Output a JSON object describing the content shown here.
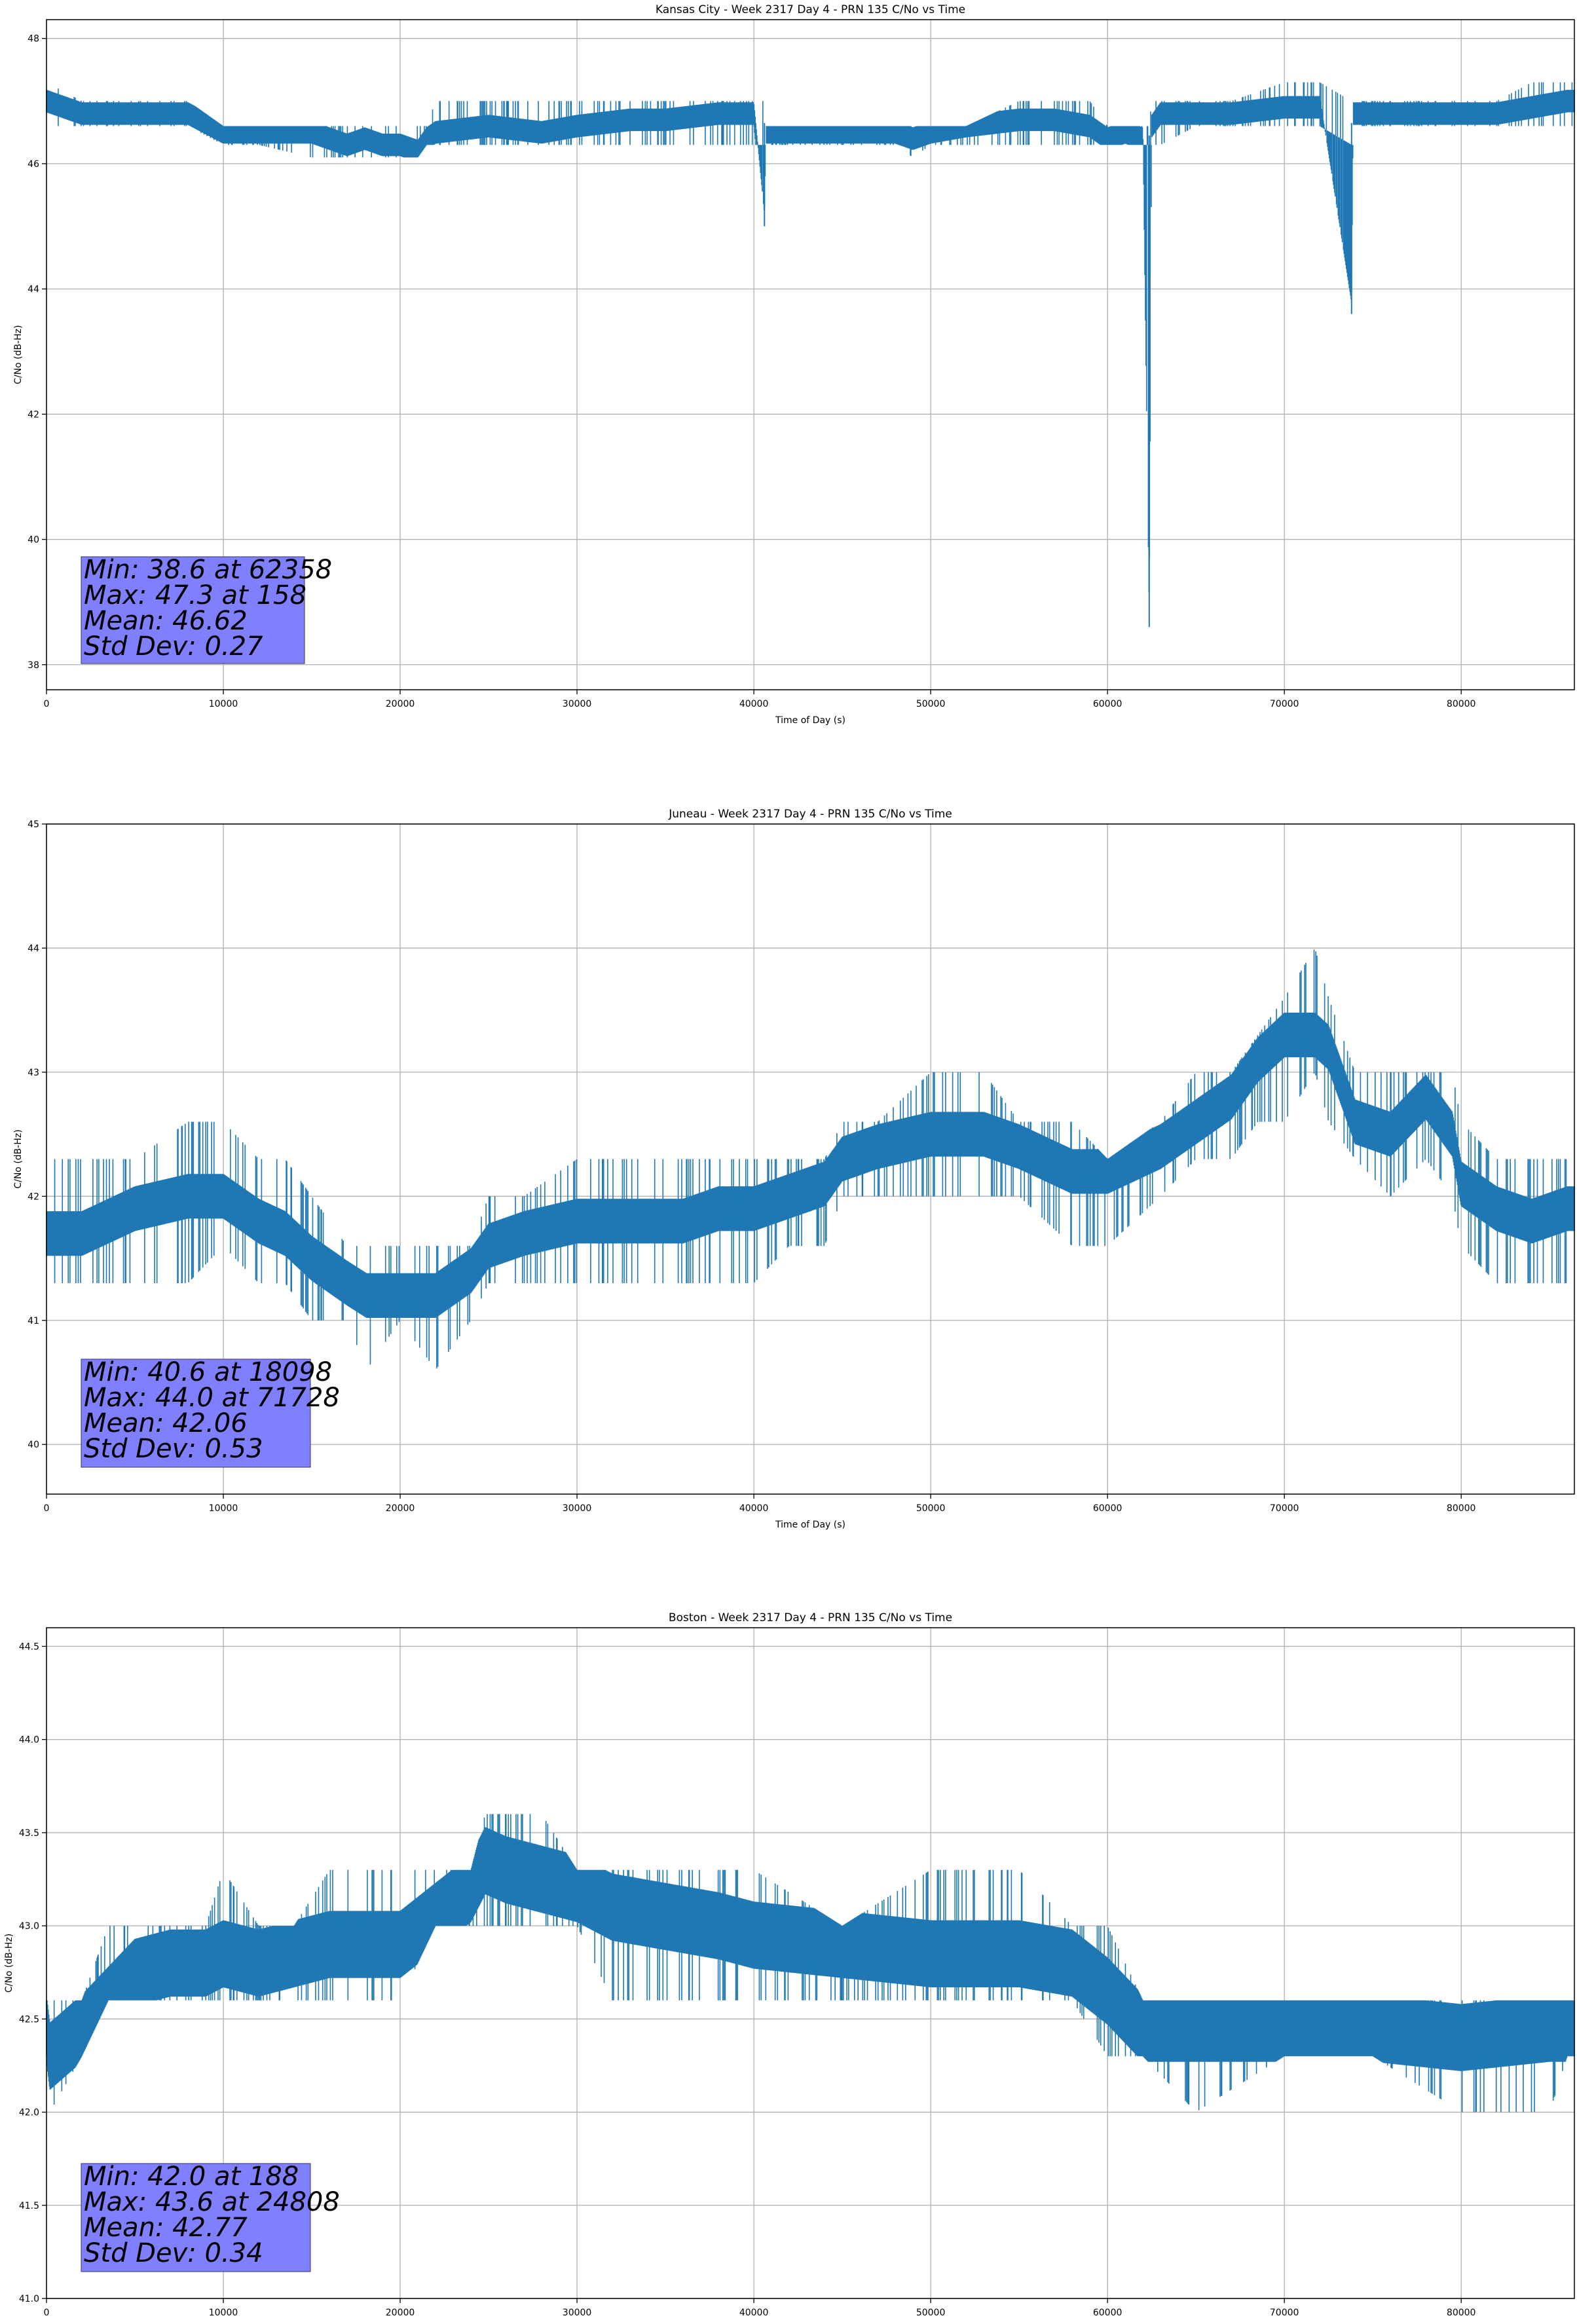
{
  "figure": {
    "xlabel": "Time of Day (s)",
    "ylabel": "C/No (dB-Hz)"
  },
  "colors": {
    "line": "#1f77b4",
    "grid": "#b0b0b0",
    "stats_box": "#8080ff"
  },
  "chart_data": [
    {
      "type": "line",
      "title": "Kansas City - Week 2317 Day 4 - PRN 135 C/No vs Time",
      "xlabel": "Time of Day (s)",
      "ylabel": "C/No (dB-Hz)",
      "xlim": [
        0,
        86400
      ],
      "ylim": [
        37.6,
        48.3
      ],
      "xticks": [
        0,
        10000,
        20000,
        30000,
        40000,
        50000,
        60000,
        70000,
        80000
      ],
      "xtick_labels": [
        "0",
        "10000",
        "20000",
        "30000",
        "40000",
        "50000",
        "60000",
        "70000",
        "80000"
      ],
      "yticks": [
        38,
        40,
        42,
        44,
        46,
        48
      ],
      "ytick_labels": [
        "38",
        "40",
        "42",
        "44",
        "46",
        "48"
      ],
      "grid": true,
      "series": [
        {
          "x": [
            0,
            2000,
            5000,
            8000,
            10000,
            12000,
            15000,
            17000,
            18000,
            19000,
            20000,
            21000,
            21500,
            22000,
            25000,
            28000,
            30000,
            33000,
            35000,
            38000,
            39000,
            40000,
            40600,
            40700,
            42000,
            45000,
            48000,
            49000,
            50000,
            52000,
            55000,
            57000,
            59000,
            60000,
            61000,
            62000,
            62358,
            62500,
            63000,
            65000,
            67000,
            70000,
            72000,
            73800,
            73900,
            74000,
            76000,
            78000,
            80000,
            82000,
            84000,
            86000
          ],
          "y": [
            47.0,
            46.8,
            46.8,
            46.8,
            46.5,
            46.5,
            46.5,
            46.3,
            46.4,
            46.3,
            46.3,
            46.2,
            46.4,
            46.5,
            46.6,
            46.5,
            46.6,
            46.7,
            46.7,
            46.8,
            46.8,
            46.8,
            45.0,
            46.5,
            46.5,
            46.5,
            46.5,
            46.4,
            46.5,
            46.6,
            46.7,
            46.7,
            46.6,
            46.4,
            46.5,
            46.4,
            38.6,
            46.6,
            46.8,
            46.8,
            46.8,
            46.9,
            46.9,
            43.6,
            46.8,
            46.8,
            46.8,
            46.8,
            46.8,
            46.8,
            46.9,
            47.0
          ],
          "band_low": [
            46.6,
            46.6,
            46.6,
            46.6,
            46.3,
            46.3,
            46.1,
            46.1,
            46.1,
            46.1,
            46.1,
            46.1,
            46.3,
            46.3,
            46.3,
            46.3,
            46.3,
            46.3,
            46.3,
            46.3,
            46.3,
            46.3,
            46.3,
            46.3,
            46.3,
            46.3,
            46.3,
            46.1,
            46.3,
            46.3,
            46.3,
            46.3,
            46.3,
            46.3,
            46.3,
            46.3,
            46.3,
            46.3,
            46.3,
            46.6,
            46.6,
            46.6,
            46.6,
            46.3,
            46.3,
            46.6,
            46.6,
            46.6,
            46.6,
            46.6,
            46.6,
            46.6
          ],
          "band_high": [
            47.3,
            47.0,
            47.0,
            47.0,
            46.6,
            46.6,
            46.6,
            46.6,
            46.6,
            46.6,
            46.6,
            46.6,
            46.6,
            47.0,
            47.0,
            47.0,
            47.0,
            47.0,
            47.0,
            47.0,
            47.0,
            47.0,
            47.0,
            46.6,
            46.6,
            46.6,
            46.6,
            46.6,
            46.6,
            46.6,
            47.0,
            47.0,
            47.0,
            46.6,
            46.6,
            46.6,
            46.6,
            47.0,
            47.0,
            47.0,
            47.0,
            47.3,
            47.3,
            47.0,
            47.3,
            47.0,
            47.0,
            47.0,
            47.0,
            47.0,
            47.3,
            47.3
          ]
        }
      ],
      "stats": [
        "Min: 38.6 at 62358",
        "Max: 47.3 at 158",
        "Mean: 46.62",
        "Std Dev: 0.27"
      ]
    },
    {
      "type": "line",
      "title": "Juneau - Week 2317 Day 4 - PRN 135 C/No vs Time",
      "xlabel": "Time of Day (s)",
      "ylabel": "C/No (dB-Hz)",
      "xlim": [
        0,
        86400
      ],
      "ylim": [
        39.6,
        45.0
      ],
      "xticks": [
        0,
        10000,
        20000,
        30000,
        40000,
        50000,
        60000,
        70000,
        80000
      ],
      "xtick_labels": [
        "0",
        "10000",
        "20000",
        "30000",
        "40000",
        "50000",
        "60000",
        "70000",
        "80000"
      ],
      "yticks": [
        40,
        41,
        42,
        43,
        44,
        45
      ],
      "ytick_labels": [
        "40",
        "41",
        "42",
        "43",
        "44",
        "45"
      ],
      "grid": true,
      "series": [
        {
          "x": [
            0,
            2000,
            5000,
            8000,
            10000,
            12000,
            13500,
            15000,
            17000,
            18098,
            20000,
            22000,
            24000,
            25000,
            27000,
            30000,
            33000,
            36000,
            38000,
            40000,
            42000,
            44000,
            45000,
            47000,
            50000,
            53000,
            55000,
            58000,
            60000,
            63000,
            65000,
            67000,
            68500,
            70000,
            71728,
            72500,
            74000,
            76000,
            78000,
            79500,
            80000,
            82000,
            84000,
            86000
          ],
          "y": [
            41.7,
            41.7,
            41.9,
            42.0,
            42.0,
            41.8,
            41.7,
            41.5,
            41.3,
            41.2,
            41.2,
            41.2,
            41.4,
            41.6,
            41.7,
            41.8,
            41.8,
            41.8,
            41.9,
            41.9,
            42.0,
            42.1,
            42.3,
            42.4,
            42.5,
            42.5,
            42.4,
            42.2,
            42.2,
            42.4,
            42.6,
            42.8,
            43.1,
            43.3,
            43.3,
            43.2,
            42.6,
            42.5,
            42.8,
            42.5,
            42.1,
            41.9,
            41.8,
            41.9
          ],
          "band_low": [
            41.3,
            41.3,
            41.3,
            41.3,
            41.6,
            41.3,
            41.3,
            41.0,
            41.0,
            40.6,
            41.0,
            40.6,
            41.0,
            41.3,
            41.3,
            41.3,
            41.3,
            41.3,
            41.3,
            41.3,
            41.6,
            41.6,
            42.0,
            42.0,
            42.0,
            42.0,
            42.0,
            41.6,
            41.6,
            42.0,
            42.3,
            42.3,
            42.6,
            42.6,
            43.0,
            42.6,
            42.3,
            42.0,
            42.3,
            42.0,
            41.6,
            41.3,
            41.3,
            41.3
          ],
          "band_high": [
            42.3,
            42.3,
            42.3,
            42.6,
            42.6,
            42.3,
            42.3,
            42.0,
            41.6,
            41.6,
            41.6,
            41.6,
            41.6,
            42.0,
            42.0,
            42.3,
            42.3,
            42.3,
            42.3,
            42.3,
            42.3,
            42.3,
            42.6,
            42.6,
            43.0,
            43.0,
            42.6,
            42.6,
            42.3,
            42.6,
            43.0,
            43.0,
            43.3,
            43.6,
            44.0,
            43.6,
            43.0,
            43.0,
            43.0,
            43.0,
            42.6,
            42.3,
            42.3,
            42.3
          ]
        }
      ],
      "stats": [
        "Min: 40.6 at 18098",
        "Max: 44.0 at 71728",
        "Mean: 42.06",
        "Std Dev: 0.53"
      ]
    },
    {
      "type": "line",
      "title": "Boston - Week 2317 Day 4 - PRN 135 C/No vs Time",
      "xlabel": "Time of Day (s)",
      "ylabel": "C/No (dB-Hz)",
      "xlim": [
        0,
        86400
      ],
      "ylim": [
        41.0,
        44.6
      ],
      "xticks": [
        0,
        10000,
        20000,
        30000,
        40000,
        50000,
        60000,
        70000,
        80000
      ],
      "xtick_labels": [
        "0",
        "10000",
        "20000",
        "30000",
        "40000",
        "50000",
        "60000",
        "70000",
        "80000"
      ],
      "yticks": [
        41.0,
        41.5,
        42.0,
        42.5,
        43.0,
        43.5,
        44.0,
        44.5
      ],
      "ytick_labels": [
        "41.0",
        "41.5",
        "42.0",
        "42.5",
        "43.0",
        "43.5",
        "44.0",
        "44.5"
      ],
      "grid": true,
      "series": [
        {
          "x": [
            0,
            188,
            2000,
            3500,
            5000,
            7000,
            9000,
            10000,
            12000,
            14000,
            16000,
            18000,
            20000,
            22000,
            24000,
            24808,
            26000,
            28000,
            30000,
            32000,
            35000,
            38000,
            40000,
            45000,
            50000,
            55000,
            58000,
            60000,
            62000,
            65000,
            70000,
            75000,
            80000,
            85000,
            86000
          ],
          "y": [
            42.45,
            42.3,
            42.45,
            42.6,
            42.75,
            42.8,
            42.8,
            42.85,
            42.8,
            42.85,
            42.9,
            42.9,
            42.9,
            43.05,
            43.2,
            43.35,
            43.3,
            43.25,
            43.2,
            43.1,
            43.05,
            43.0,
            42.95,
            42.9,
            42.85,
            42.85,
            42.8,
            42.65,
            42.45,
            42.45,
            42.45,
            42.45,
            42.4,
            42.45,
            42.45
          ],
          "band_low": [
            42.3,
            42.0,
            42.3,
            42.6,
            42.6,
            42.6,
            42.6,
            42.6,
            42.6,
            42.6,
            42.6,
            42.6,
            42.6,
            43.0,
            43.0,
            43.0,
            43.0,
            43.0,
            43.0,
            42.6,
            42.6,
            42.6,
            42.6,
            42.6,
            42.6,
            42.6,
            42.6,
            42.3,
            42.3,
            42.0,
            42.3,
            42.3,
            42.0,
            42.0,
            42.3
          ],
          "band_high": [
            42.6,
            42.6,
            42.6,
            43.0,
            43.0,
            43.0,
            43.0,
            43.3,
            43.0,
            43.0,
            43.3,
            43.3,
            43.3,
            43.3,
            43.3,
            43.6,
            43.6,
            43.6,
            43.3,
            43.3,
            43.3,
            43.3,
            43.3,
            43.0,
            43.3,
            43.3,
            43.0,
            43.0,
            42.6,
            42.6,
            42.6,
            42.6,
            42.6,
            42.6,
            42.6
          ]
        }
      ],
      "stats": [
        "Min: 42.0 at 188",
        "Max: 43.6 at 24808",
        "Mean: 42.77",
        "Std Dev: 0.34"
      ]
    }
  ]
}
